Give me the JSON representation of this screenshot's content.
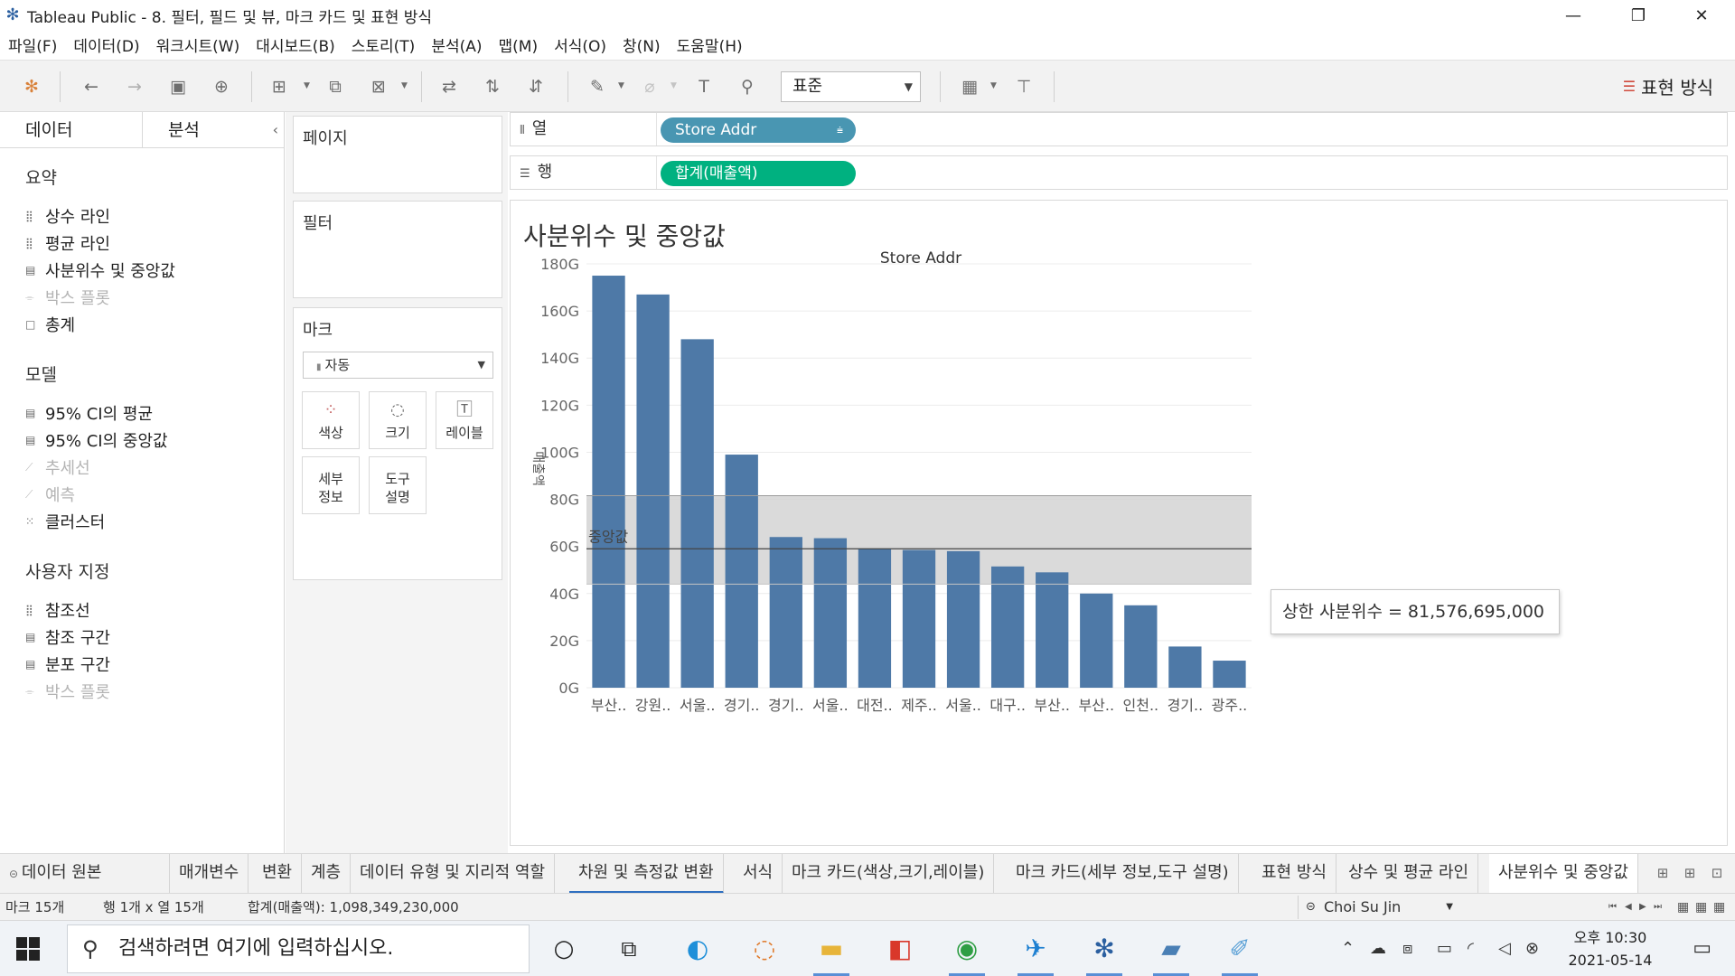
{
  "window": {
    "title": "Tableau Public - 8. 필터, 필드 및 뷰, 마크 카드 및 표현 방식",
    "minimize": "—",
    "restore": "❐",
    "close": "✕"
  },
  "menu": [
    "파일(F)",
    "데이터(D)",
    "워크시트(W)",
    "대시보드(B)",
    "스토리(T)",
    "분석(A)",
    "맵(M)",
    "서식(O)",
    "창(N)",
    "도움말(H)"
  ],
  "toolbar": {
    "fit": "표준",
    "show_me": "표현 방식"
  },
  "left_pane": {
    "tab_data": "데이터",
    "tab_analytics": "분석",
    "collapse": "‹",
    "sections": {
      "summary": {
        "title": "요약",
        "items": [
          {
            "label": "상수 라인",
            "icon": "bar-dots-icon",
            "disabled": false
          },
          {
            "label": "평균 라인",
            "icon": "bar-dots-icon",
            "disabled": false
          },
          {
            "label": "사분위수 및 중앙값",
            "icon": "band-icon",
            "disabled": false
          },
          {
            "label": "박스 플롯",
            "icon": "box-plot-icon",
            "disabled": true
          },
          {
            "label": "총계",
            "icon": "square-icon",
            "disabled": false
          }
        ]
      },
      "model": {
        "title": "모델",
        "items": [
          {
            "label": "95% CI의 평균",
            "icon": "band-icon",
            "disabled": false
          },
          {
            "label": "95% CI의 중앙값",
            "icon": "band-icon",
            "disabled": false
          },
          {
            "label": "추세선",
            "icon": "trend-icon",
            "disabled": true
          },
          {
            "label": "예측",
            "icon": "forecast-icon",
            "disabled": true
          },
          {
            "label": "클러스터",
            "icon": "cluster-icon",
            "disabled": false
          }
        ]
      },
      "custom": {
        "title": "사용자 지정",
        "items": [
          {
            "label": "참조선",
            "icon": "bar-dots-icon",
            "disabled": false
          },
          {
            "label": "참조 구간",
            "icon": "band-icon",
            "disabled": false
          },
          {
            "label": "분포 구간",
            "icon": "band-icon",
            "disabled": false
          },
          {
            "label": "박스 플롯",
            "icon": "box-plot-icon",
            "disabled": true
          }
        ]
      }
    }
  },
  "cards": {
    "pages": "페이지",
    "filters": "필터",
    "marks": "마크",
    "mark_type": "자동",
    "mark_buttons": {
      "color": "색상",
      "size": "크기",
      "label": "레이블",
      "detail_1": "세부",
      "detail_2": "정보",
      "tooltip_1": "도구",
      "tooltip_2": "설명"
    }
  },
  "shelves": {
    "columns_label": "열",
    "rows_label": "행",
    "columns_pill": "Store Addr",
    "rows_pill": "합계(매출액)"
  },
  "viz": {
    "sheet_title": "사분위수 및 중앙값",
    "median_label": "중앙값",
    "tooltip": "상한 사분위수 = 81,576,695,000"
  },
  "chart_data": {
    "type": "bar",
    "title": "Store Addr",
    "xlabel": "Store Addr",
    "ylabel": "매출액",
    "categories": [
      "부산..",
      "강원..",
      "서울..",
      "경기..",
      "경기..",
      "서울..",
      "대전..",
      "제주..",
      "서울..",
      "대구..",
      "부산..",
      "부산..",
      "인천..",
      "경기..",
      "광주.."
    ],
    "values": [
      175,
      167,
      148,
      99,
      64,
      63.5,
      59,
      58.5,
      58,
      51.5,
      49,
      40,
      35,
      17.5,
      11.5
    ],
    "value_unit": "G",
    "yticks": [
      "0G",
      "20G",
      "40G",
      "60G",
      "80G",
      "100G",
      "120G",
      "140G",
      "160G",
      "180G"
    ],
    "ylim": [
      0,
      180
    ],
    "reference": {
      "median": 59,
      "lower_quartile": 44,
      "upper_quartile": 81.576695
    },
    "bar_color": "#4e79a7",
    "band_color": "#d6d6d6",
    "grid": true
  },
  "sheet_tabs": [
    {
      "label": "데이터 원본",
      "active": false
    },
    {
      "label": "매개변수",
      "active": false
    },
    {
      "label": "변환",
      "active": false
    },
    {
      "label": "계층",
      "active": false
    },
    {
      "label": "데이터 유형 및 지리적 역할",
      "active": false
    },
    {
      "label": "차원 및 측정값 변환",
      "active": false
    },
    {
      "label": "서식",
      "active": false
    },
    {
      "label": "마크 카드(색상,크기,레이블)",
      "active": false
    },
    {
      "label": "마크 카드(세부 정보,도구 설명)",
      "active": false
    },
    {
      "label": "표현 방식",
      "active": false
    },
    {
      "label": "상수 및 평균 라인",
      "active": false
    },
    {
      "label": "사분위수 및 중앙값",
      "active": true
    }
  ],
  "status": {
    "marks": "마크 15개",
    "rows_cols": "행 1개 x 열 15개",
    "sum": "합계(매출액): 1,098,349,230,000",
    "user": "Choi Su Jin"
  },
  "taskbar": {
    "search_placeholder": "검색하려면 여기에 입력하십시오.",
    "time": "오후 10:30",
    "date": "2021-05-14"
  }
}
